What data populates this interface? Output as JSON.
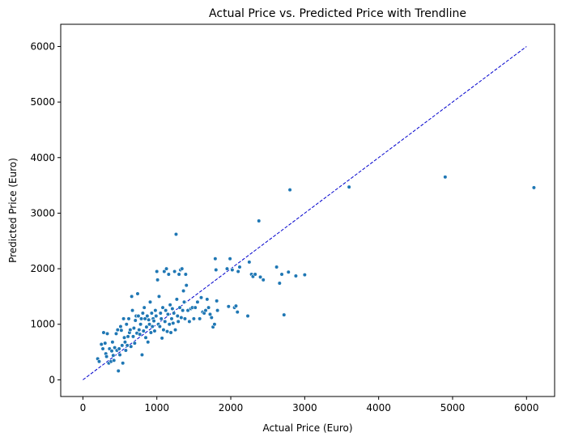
{
  "chart_data": {
    "type": "scatter",
    "title": "Actual Price vs. Predicted Price with Trendline",
    "xlabel": "Actual Price (Euro)",
    "ylabel": "Predicted Price (Euro)",
    "xlim": [
      -300,
      6380
    ],
    "ylim": [
      -300,
      6400
    ],
    "xticks": [
      0,
      1000,
      2000,
      3000,
      4000,
      5000,
      6000
    ],
    "yticks": [
      0,
      1000,
      2000,
      3000,
      4000,
      5000,
      6000
    ],
    "grid": false,
    "point_color": "#1f77b4",
    "trendline": {
      "x": [
        0,
        6000
      ],
      "y": [
        0,
        6000
      ],
      "color": "#0000cd",
      "style": "dashed"
    },
    "points": [
      [
        200,
        380
      ],
      [
        220,
        330
      ],
      [
        250,
        640
      ],
      [
        270,
        560
      ],
      [
        280,
        850
      ],
      [
        300,
        660
      ],
      [
        310,
        470
      ],
      [
        320,
        420
      ],
      [
        330,
        830
      ],
      [
        350,
        300
      ],
      [
        360,
        560
      ],
      [
        380,
        330
      ],
      [
        390,
        520
      ],
      [
        400,
        680
      ],
      [
        410,
        440
      ],
      [
        420,
        350
      ],
      [
        430,
        580
      ],
      [
        450,
        830
      ],
      [
        460,
        530
      ],
      [
        470,
        900
      ],
      [
        480,
        160
      ],
      [
        490,
        560
      ],
      [
        500,
        450
      ],
      [
        510,
        960
      ],
      [
        520,
        890
      ],
      [
        530,
        620
      ],
      [
        540,
        300
      ],
      [
        550,
        1100
      ],
      [
        560,
        760
      ],
      [
        570,
        680
      ],
      [
        580,
        530
      ],
      [
        590,
        1000
      ],
      [
        600,
        620
      ],
      [
        610,
        780
      ],
      [
        620,
        1100
      ],
      [
        630,
        850
      ],
      [
        640,
        900
      ],
      [
        650,
        600
      ],
      [
        660,
        1500
      ],
      [
        670,
        1250
      ],
      [
        680,
        780
      ],
      [
        690,
        930
      ],
      [
        700,
        660
      ],
      [
        710,
        1070
      ],
      [
        720,
        1150
      ],
      [
        730,
        840
      ],
      [
        740,
        1550
      ],
      [
        750,
        1150
      ],
      [
        760,
        900
      ],
      [
        770,
        820
      ],
      [
        780,
        1000
      ],
      [
        790,
        1100
      ],
      [
        800,
        450
      ],
      [
        810,
        1200
      ],
      [
        820,
        880
      ],
      [
        830,
        1300
      ],
      [
        840,
        1100
      ],
      [
        850,
        760
      ],
      [
        860,
        950
      ],
      [
        870,
        1150
      ],
      [
        880,
        680
      ],
      [
        890,
        1080
      ],
      [
        900,
        1000
      ],
      [
        910,
        1400
      ],
      [
        920,
        850
      ],
      [
        930,
        1200
      ],
      [
        940,
        960
      ],
      [
        950,
        1100
      ],
      [
        960,
        1060
      ],
      [
        970,
        880
      ],
      [
        980,
        1250
      ],
      [
        990,
        1150
      ],
      [
        1000,
        1950
      ],
      [
        1010,
        1800
      ],
      [
        1020,
        1000
      ],
      [
        1030,
        1500
      ],
      [
        1040,
        960
      ],
      [
        1050,
        1200
      ],
      [
        1060,
        1100
      ],
      [
        1070,
        750
      ],
      [
        1080,
        1300
      ],
      [
        1090,
        900
      ],
      [
        1100,
        1950
      ],
      [
        1110,
        1050
      ],
      [
        1120,
        1250
      ],
      [
        1130,
        2000
      ],
      [
        1140,
        870
      ],
      [
        1150,
        1180
      ],
      [
        1160,
        1900
      ],
      [
        1170,
        1000
      ],
      [
        1180,
        1350
      ],
      [
        1190,
        850
      ],
      [
        1200,
        1100
      ],
      [
        1210,
        1280
      ],
      [
        1220,
        1020
      ],
      [
        1230,
        1200
      ],
      [
        1240,
        1950
      ],
      [
        1250,
        900
      ],
      [
        1260,
        2620
      ],
      [
        1270,
        1450
      ],
      [
        1280,
        1150
      ],
      [
        1290,
        1050
      ],
      [
        1300,
        1900
      ],
      [
        1310,
        1300
      ],
      [
        1320,
        1980
      ],
      [
        1330,
        1120
      ],
      [
        1340,
        2000
      ],
      [
        1350,
        1250
      ],
      [
        1360,
        1600
      ],
      [
        1370,
        1400
      ],
      [
        1380,
        1100
      ],
      [
        1390,
        1900
      ],
      [
        1400,
        1700
      ],
      [
        1420,
        1250
      ],
      [
        1440,
        1050
      ],
      [
        1460,
        1280
      ],
      [
        1480,
        1300
      ],
      [
        1500,
        1100
      ],
      [
        1520,
        1300
      ],
      [
        1550,
        1400
      ],
      [
        1580,
        1100
      ],
      [
        1600,
        1480
      ],
      [
        1620,
        1220
      ],
      [
        1640,
        1200
      ],
      [
        1660,
        1250
      ],
      [
        1680,
        1450
      ],
      [
        1700,
        1300
      ],
      [
        1720,
        1180
      ],
      [
        1740,
        1120
      ],
      [
        1760,
        950
      ],
      [
        1780,
        1000
      ],
      [
        1790,
        2180
      ],
      [
        1800,
        1980
      ],
      [
        1810,
        1420
      ],
      [
        1820,
        1250
      ],
      [
        1950,
        2000
      ],
      [
        1970,
        1320
      ],
      [
        1990,
        2180
      ],
      [
        2020,
        1980
      ],
      [
        2050,
        1300
      ],
      [
        2070,
        1330
      ],
      [
        2090,
        1220
      ],
      [
        2100,
        1950
      ],
      [
        2120,
        2030
      ],
      [
        2230,
        1150
      ],
      [
        2250,
        2120
      ],
      [
        2280,
        1900
      ],
      [
        2300,
        1860
      ],
      [
        2330,
        1900
      ],
      [
        2380,
        2860
      ],
      [
        2400,
        1850
      ],
      [
        2440,
        1800
      ],
      [
        2620,
        2030
      ],
      [
        2660,
        1740
      ],
      [
        2690,
        1900
      ],
      [
        2720,
        1170
      ],
      [
        2780,
        1940
      ],
      [
        2800,
        3420
      ],
      [
        2880,
        1870
      ],
      [
        3000,
        1890
      ],
      [
        3600,
        3470
      ],
      [
        4900,
        3650
      ],
      [
        6100,
        3460
      ]
    ]
  }
}
